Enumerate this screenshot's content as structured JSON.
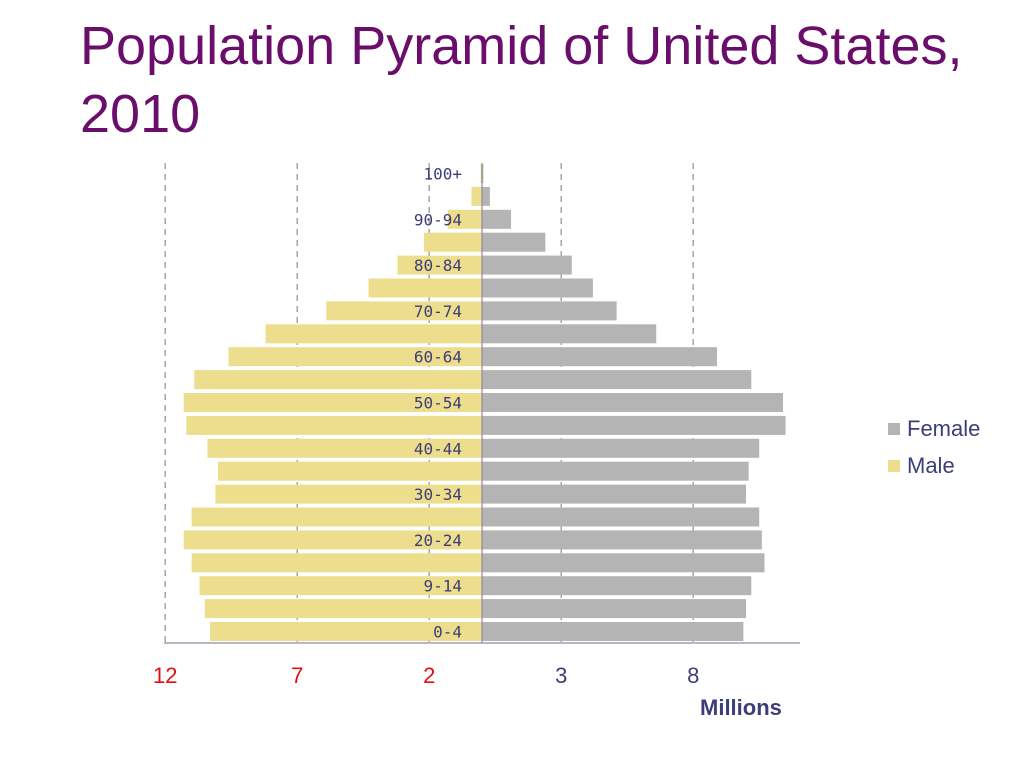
{
  "chart_data": {
    "type": "bar",
    "orientation": "horizontal",
    "title": "Population Pyramid of United States, 2010",
    "xlabel": "Millions",
    "x_tick_labels": [
      "12",
      "7",
      "2",
      "3",
      "8"
    ],
    "x_tick_values": [
      -12,
      -7,
      -2,
      3,
      8
    ],
    "xlim": [
      -12,
      12
    ],
    "age_group_labels": [
      "0-4",
      "9-14",
      "20-24",
      "30-34",
      "40-44",
      "50-54",
      "60-64",
      "70-74",
      "80-84",
      "90-94",
      "100+"
    ],
    "age_label_rows": [
      0,
      2,
      4,
      6,
      8,
      10,
      12,
      14,
      16,
      18,
      20
    ],
    "series": [
      {
        "name": "Male",
        "color": "#ecde8c",
        "values": [
          10.3,
          10.5,
          10.7,
          11.0,
          11.3,
          11.0,
          10.1,
          10.0,
          10.4,
          11.2,
          11.3,
          10.9,
          9.6,
          8.2,
          5.9,
          4.3,
          3.2,
          2.2,
          1.3,
          0.4,
          0.05
        ]
      },
      {
        "name": "Female",
        "color": "#b4b4b4",
        "values": [
          9.9,
          10.0,
          10.2,
          10.7,
          10.6,
          10.5,
          10.0,
          10.1,
          10.5,
          11.5,
          11.4,
          10.2,
          8.9,
          6.6,
          5.1,
          4.2,
          3.4,
          2.4,
          1.1,
          0.3,
          0.05
        ]
      }
    ],
    "grid": "vertical-dashed",
    "legend_position": "right"
  },
  "colors": {
    "title": "#6b0d6b",
    "tick_negative": "#e01010",
    "tick_positive": "#3d3d7a",
    "axis": "#8a8aa0",
    "grid": "#999999",
    "age_label": "#3d3d7a"
  }
}
